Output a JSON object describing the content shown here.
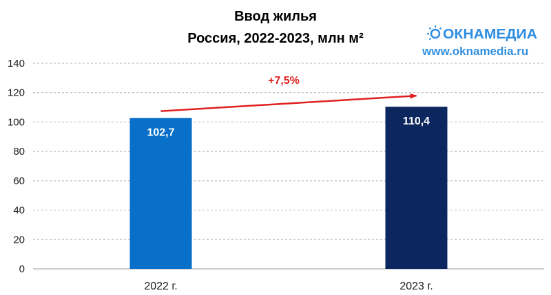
{
  "chart_data": {
    "type": "bar",
    "title_line1": "Ввод жилья",
    "title_line2": "Россия, 2022-2023, млн м²",
    "categories": [
      "2022 г.",
      "2023 г."
    ],
    "values": [
      102.7,
      110.4
    ],
    "value_labels": [
      "102,7",
      "110,4"
    ],
    "bar_colors": [
      "#0870c8",
      "#0c2760"
    ],
    "ylim": [
      0,
      140
    ],
    "yticks": [
      0,
      20,
      40,
      60,
      80,
      100,
      120,
      140
    ],
    "grid": true,
    "change_label": "+7,5%",
    "change_color": "#e02020"
  },
  "branding": {
    "logo_text": "ОКНАМЕДИА",
    "site": "www.oknamedia.ru",
    "color": "#2f8ee0"
  }
}
